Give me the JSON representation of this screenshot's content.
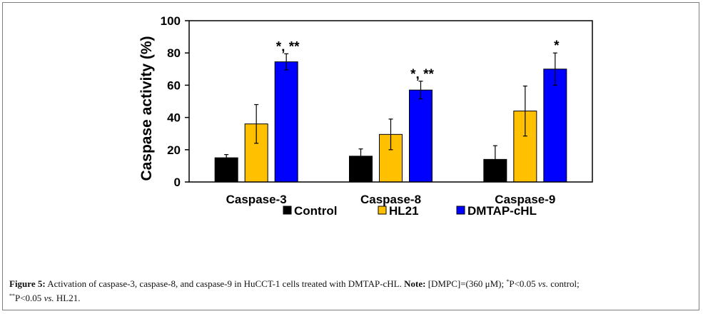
{
  "chart_data": {
    "type": "bar",
    "categories": [
      "Caspase-3",
      "Caspase-8",
      "Caspase-9"
    ],
    "series": [
      {
        "name": "Control",
        "color": "#000000",
        "values": [
          15,
          16,
          14
        ],
        "errors": [
          2,
          4.5,
          8.5
        ]
      },
      {
        "name": "HL21",
        "color": "#ffc000",
        "values": [
          36,
          29.5,
          44
        ],
        "errors": [
          12,
          9.5,
          15.5
        ]
      },
      {
        "name": "DMTAP-cHL",
        "color": "#0000ff",
        "values": [
          74.5,
          57,
          70
        ],
        "errors": [
          5,
          5.5,
          10
        ]
      }
    ],
    "annotations": [
      {
        "category": 0,
        "series": 2,
        "text": "*, **"
      },
      {
        "category": 1,
        "series": 2,
        "text": "*, **"
      },
      {
        "category": 2,
        "series": 2,
        "text": "*"
      }
    ],
    "ylabel": "Caspase activity (%)",
    "xlabel": "",
    "ylim": [
      0,
      100
    ],
    "yticks": [
      0,
      20,
      40,
      60,
      80,
      100
    ],
    "grid": false,
    "legend_position": "bottom"
  },
  "caption": {
    "label": "Figure 5:",
    "text": " Activation of caspase-3, caspase-8, and caspase-9 in HuCCT-1 cells treated with DMTAP-cHL.",
    "note_label": "Note:",
    "note_text": " [DMPC]=(360 μM); ",
    "sig1_mark": "*",
    "sig1_text": "P<0.05 ",
    "vs1": "vs.",
    "sig1_tail": " control;",
    "sig2_mark": "**",
    "sig2_text": "P<0.05 ",
    "vs2": "vs.",
    "sig2_tail": " HL21."
  }
}
